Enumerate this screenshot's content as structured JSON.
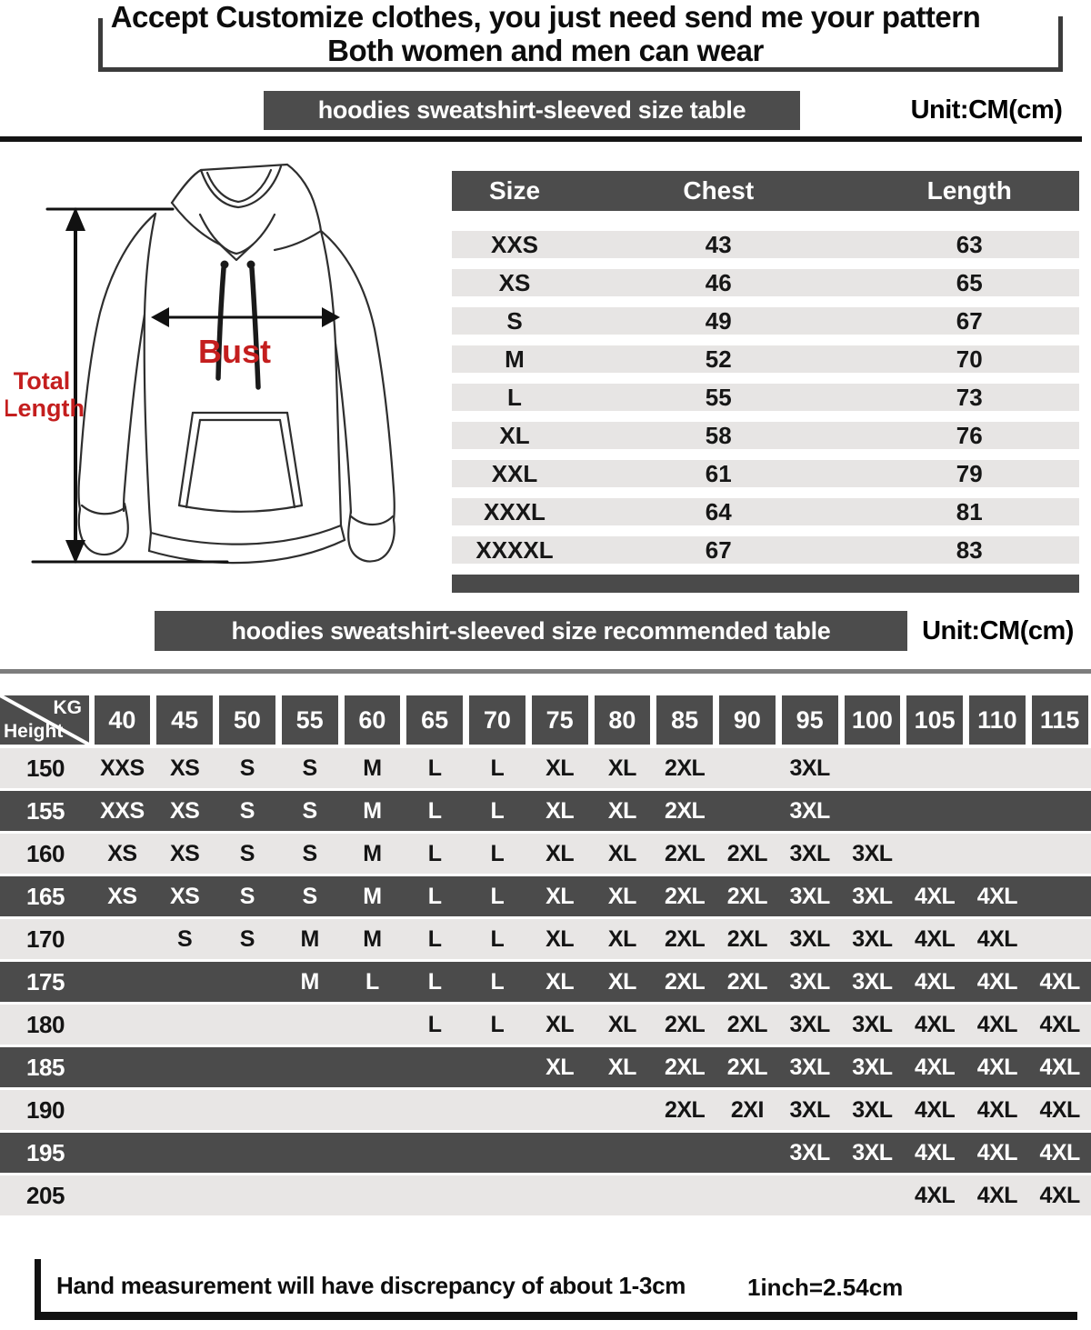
{
  "header": {
    "line1": "Accept Customize clothes, you just need send me your pattern",
    "line2": "Both women and men can wear"
  },
  "size_table_section": {
    "banner": "hoodies sweatshirt-sleeved size  table",
    "unit": "Unit:CM(cm)"
  },
  "diagram": {
    "bust_label": "Bust",
    "total_length_line1": "Total",
    "total_length_line2": "Length"
  },
  "size_table": {
    "headers": [
      "Size",
      "Chest",
      "Length"
    ],
    "rows": [
      [
        "XXS",
        "43",
        "63"
      ],
      [
        "XS",
        "46",
        "65"
      ],
      [
        "S",
        "49",
        "67"
      ],
      [
        "M",
        "52",
        "70"
      ],
      [
        "L",
        "55",
        "73"
      ],
      [
        "XL",
        "58",
        "76"
      ],
      [
        "XXL",
        "61",
        "79"
      ],
      [
        "XXXL",
        "64",
        "81"
      ],
      [
        "XXXXL",
        "67",
        "83"
      ]
    ]
  },
  "recommend_section": {
    "banner": "hoodies sweatshirt-sleeved size recommended table",
    "unit": "Unit:CM(cm)"
  },
  "matrix": {
    "corner_top": "KG",
    "corner_bottom": "Height",
    "weights": [
      "40",
      "45",
      "50",
      "55",
      "60",
      "65",
      "70",
      "75",
      "80",
      "85",
      "90",
      "95",
      "100",
      "105",
      "110",
      "115"
    ],
    "rows": [
      {
        "height": "150",
        "cells": [
          "XXS",
          "XS",
          "S",
          "S",
          "M",
          "L",
          "L",
          "XL",
          "XL",
          "2XL",
          "",
          "3XL",
          "",
          "",
          "",
          ""
        ]
      },
      {
        "height": "155",
        "cells": [
          "XXS",
          "XS",
          "S",
          "S",
          "M",
          "L",
          "L",
          "XL",
          "XL",
          "2XL",
          "",
          "3XL",
          "",
          "",
          "",
          ""
        ]
      },
      {
        "height": "160",
        "cells": [
          "XS",
          "XS",
          "S",
          "S",
          "M",
          "L",
          "L",
          "XL",
          "XL",
          "2XL",
          "2XL",
          "3XL",
          "3XL",
          "",
          "",
          ""
        ]
      },
      {
        "height": "165",
        "cells": [
          "XS",
          "XS",
          "S",
          "S",
          "M",
          "L",
          "L",
          "XL",
          "XL",
          "2XL",
          "2XL",
          "3XL",
          "3XL",
          "4XL",
          "4XL",
          ""
        ]
      },
      {
        "height": "170",
        "cells": [
          "",
          "S",
          "S",
          "M",
          "M",
          "L",
          "L",
          "XL",
          "XL",
          "2XL",
          "2XL",
          "3XL",
          "3XL",
          "4XL",
          "4XL",
          ""
        ]
      },
      {
        "height": "175",
        "cells": [
          "",
          "",
          "",
          "M",
          "L",
          "L",
          "L",
          "XL",
          "XL",
          "2XL",
          "2XL",
          "3XL",
          "3XL",
          "4XL",
          "4XL",
          "4XL"
        ]
      },
      {
        "height": "180",
        "cells": [
          "",
          "",
          "",
          "",
          "",
          "L",
          "L",
          "XL",
          "XL",
          "2XL",
          "2XL",
          "3XL",
          "3XL",
          "4XL",
          "4XL",
          "4XL"
        ]
      },
      {
        "height": "185",
        "cells": [
          "",
          "",
          "",
          "",
          "",
          "",
          "",
          "XL",
          "XL",
          "2XL",
          "2XL",
          "3XL",
          "3XL",
          "4XL",
          "4XL",
          "4XL"
        ]
      },
      {
        "height": "190",
        "cells": [
          "",
          "",
          "",
          "",
          "",
          "",
          "",
          "",
          "",
          "2XL",
          "2XI",
          "3XL",
          "3XL",
          "4XL",
          "4XL",
          "4XL"
        ]
      },
      {
        "height": "195",
        "cells": [
          "",
          "",
          "",
          "",
          "",
          "",
          "",
          "",
          "",
          "",
          "",
          "3XL",
          "3XL",
          "4XL",
          "4XL",
          "4XL"
        ]
      },
      {
        "height": "205",
        "cells": [
          "",
          "",
          "",
          "",
          "",
          "",
          "",
          "",
          "",
          "",
          "",
          "",
          "",
          "4XL",
          "4XL",
          "4XL"
        ]
      }
    ]
  },
  "footer": {
    "note": "Hand measurement will have discrepancy of about  1-3cm",
    "conversion": "1inch=2.54cm"
  },
  "colors": {
    "dark_gray": "#4c4c4c",
    "row_light": "#e7e5e4",
    "accent_red": "#c41e1e"
  }
}
